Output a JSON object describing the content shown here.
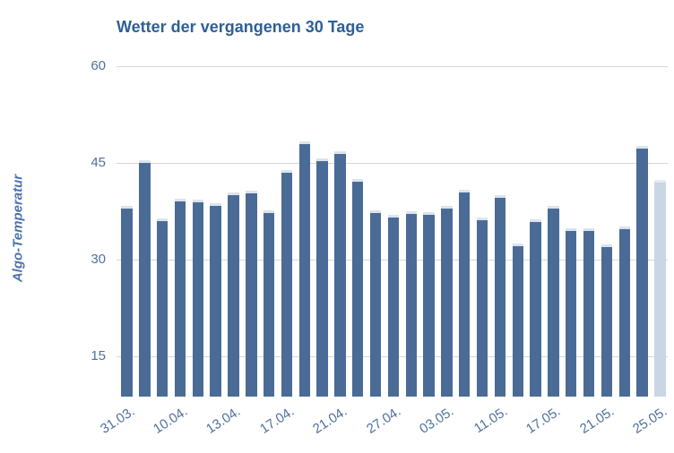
{
  "chart_data": {
    "type": "bar",
    "title": "Wetter der vergangenen 30 Tage",
    "ylabel": "Algo-Temperatur",
    "xlabel": "",
    "y_ticks": [
      60,
      45,
      30,
      15
    ],
    "ylim": [
      8.75,
      60
    ],
    "grid": "horizontal",
    "legend": "none",
    "x_tick_labels": [
      "31.03.",
      "10.04.",
      "13.04.",
      "17.04.",
      "21.04.",
      "27.04.",
      "03.05.",
      "11.05.",
      "17.05.",
      "21.05.",
      "25.05."
    ],
    "x_tick_every": 3,
    "values": [
      38.3,
      45.4,
      36.4,
      39.5,
      39.3,
      38.8,
      40.4,
      40.7,
      37.6,
      43.9,
      48.4,
      45.7,
      46.8,
      42.5,
      37.6,
      37.0,
      37.5,
      37.4,
      38.4,
      40.9,
      36.5,
      40.0,
      32.5,
      36.3,
      38.3,
      34.8,
      34.8,
      32.4,
      35.1,
      47.6,
      42.4
    ],
    "highlight_last_bar": true,
    "colors": {
      "bar": "#4a6b96",
      "bar_top_cap": "#dbe3ee",
      "last_bar": "#c9d6e4",
      "last_bar_top_cap": "#e3eaf2",
      "title_text": "#2e6094",
      "axis_text": "#4f719c",
      "y_axis_title_text": "#4a73ad",
      "gridline": "#d6d6d6",
      "background": "#ffffff"
    }
  }
}
